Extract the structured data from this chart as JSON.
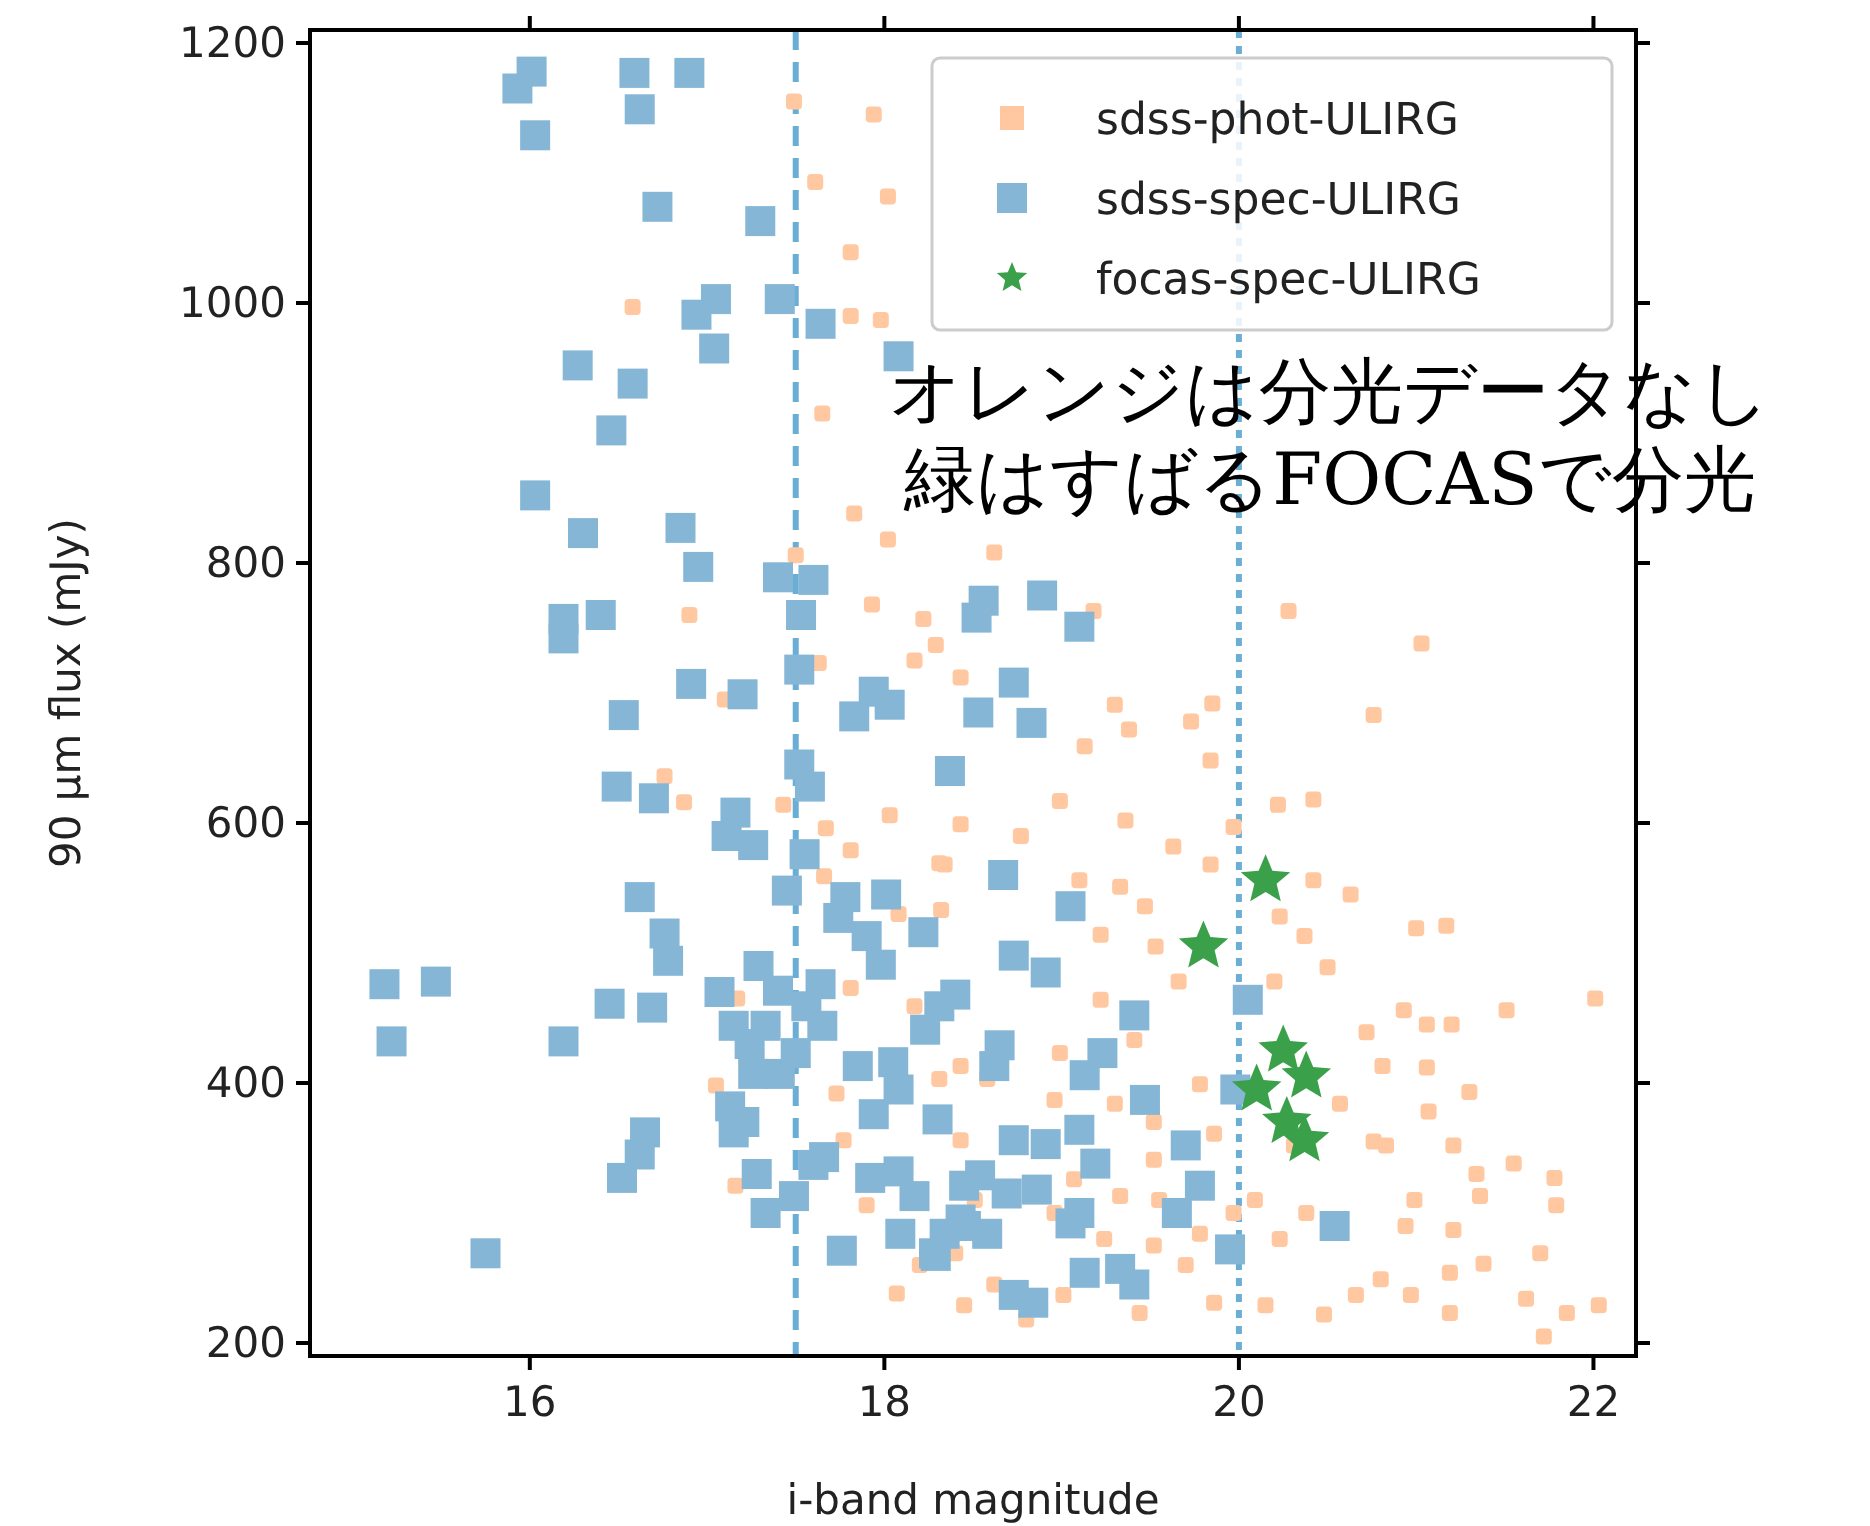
{
  "chart_data": {
    "type": "scatter",
    "xlabel": "i-band magnitude",
    "ylabel": "90 μm flux (mJy)",
    "xlim": [
      14.76,
      22.24
    ],
    "ylim": [
      190,
      1210
    ],
    "xticks": [
      16,
      18,
      20,
      22
    ],
    "yticks": [
      200,
      400,
      600,
      800,
      1000,
      1200
    ],
    "grid": false,
    "legend": "top right",
    "annotations": [
      "オレンジは分光データなし",
      "緑はすばるFOCASで分光"
    ],
    "ref_lines": [
      {
        "axis": "x",
        "value": 17.5,
        "color": "#6aaed6",
        "line_style": "dashed"
      },
      {
        "axis": "x",
        "value": 20.0,
        "color": "#6aaed6",
        "line_style": "dotted"
      }
    ],
    "series": [
      {
        "name": "sdss-phot-ULIRG",
        "color": "#ffc8a0",
        "marker": "square",
        "x": [
          17.49,
          17.94,
          17.61,
          18.02,
          17.81,
          17.81,
          17.98,
          16.58,
          17.65,
          17.83,
          18.02,
          16.9,
          17.93,
          18.22,
          18.29,
          18.17,
          18.43,
          17.63,
          17.5,
          17.1,
          16.76,
          16.87,
          17.43,
          17.67,
          18.03,
          17.81,
          18.31,
          17.66,
          18.08,
          18.32,
          17.81,
          17.17,
          18.17,
          17.05,
          17.73,
          17.77,
          17.16,
          17.9,
          18.07,
          18.45,
          18.31,
          18.43,
          18.51,
          18.62,
          19.18,
          20.28,
          21.03,
          20.76,
          19.3,
          19.85,
          19.73,
          19.38,
          19.13,
          19.84,
          18.43,
          18.99,
          19.36,
          20.22,
          20.42,
          19.97,
          18.77,
          19.63,
          18.34,
          19.1,
          19.33,
          19.84,
          20.42,
          20.63,
          20.23,
          19.47,
          19.22,
          19.53,
          20.37,
          21.0,
          21.17,
          20.5,
          19.66,
          19.22,
          20.2,
          20.93,
          21.51,
          22.01,
          21.06,
          20.72,
          21.2,
          20.81,
          21.06,
          21.3,
          20.57,
          21.07,
          19.78,
          19.41,
          18.99,
          18.43,
          19.86,
          19.52,
          19.3,
          18.96,
          18.58,
          19.52,
          20.31,
          20.76,
          20.83,
          21.21,
          21.55,
          21.78,
          21.34,
          20.99,
          21.36,
          21.79,
          20.94,
          21.21,
          21.7,
          21.38,
          21.19,
          20.8,
          20.97,
          20.66,
          20.48,
          21.19,
          21.62,
          21.85,
          22.03,
          21.72,
          20.15,
          19.86,
          19.44,
          19.01,
          18.8,
          18.62,
          19.97,
          19.78,
          19.52,
          19.24,
          18.96,
          19.33,
          19.07,
          19.55,
          20.09,
          20.23,
          20.38,
          19.7,
          18.4,
          18.2
        ],
        "values": [
          1155,
          1145,
          1093,
          1082,
          1039,
          990,
          987,
          997,
          915,
          838,
          818,
          760,
          768,
          757,
          737,
          725,
          712,
          723,
          806,
          695,
          636,
          616,
          614,
          596,
          606,
          579,
          569,
          559,
          530,
          533,
          473,
          465,
          459,
          398,
          392,
          356,
          321,
          306,
          238,
          229,
          403,
          356,
          310,
          808,
          763,
          763,
          738,
          683,
          691,
          692,
          678,
          672,
          659,
          648,
          599,
          617,
          602,
          614,
          618,
          597,
          590,
          582,
          568,
          556,
          551,
          568,
          556,
          545,
          528,
          536,
          514,
          505,
          513,
          519,
          521,
          489,
          478,
          464,
          478,
          456,
          456,
          465,
          445,
          439,
          445,
          413,
          412,
          393,
          384,
          378,
          399,
          433,
          423,
          413,
          361,
          370,
          384,
          387,
          403,
          341,
          352,
          355,
          352,
          352,
          338,
          327,
          330,
          310,
          313,
          306,
          290,
          287,
          269,
          261,
          254,
          249,
          237,
          237,
          222,
          223,
          234,
          223,
          229,
          205,
          229,
          231,
          223,
          237,
          218,
          245,
          300,
          284,
          275,
          280,
          300,
          313,
          326,
          310,
          310,
          280,
          300,
          260,
          269,
          260
        ]
      },
      {
        "name": "sdss-spec-ULIRG",
        "color": "#85b6d6",
        "marker": "square",
        "x": [
          16.01,
          15.93,
          16.59,
          16.62,
          16.9,
          16.03,
          16.72,
          17.3,
          17.05,
          16.94,
          17.41,
          17.64,
          17.04,
          16.27,
          16.58,
          16.46,
          16.03,
          16.3,
          16.85,
          16.95,
          17.4,
          17.6,
          16.19,
          16.19,
          16.4,
          17.53,
          17.52,
          16.91,
          17.2,
          17.94,
          18.03,
          18.08,
          16.53,
          17.83,
          18.37,
          17.52,
          17.58,
          16.49,
          16.7,
          17.16,
          17.11,
          17.26,
          17.55,
          17.45,
          16.62,
          17.78,
          18.01,
          17.74,
          16.76,
          16.78,
          17.9,
          18.22,
          17.98,
          17.29,
          17.64,
          15.18,
          15.47,
          15.22,
          16.19,
          16.45,
          16.69,
          17.07,
          17.4,
          17.56,
          17.15,
          17.33,
          17.65,
          17.24,
          17.5,
          17.26,
          17.41,
          17.85,
          18.05,
          18.31,
          18.4,
          18.23,
          18.08,
          17.13,
          17.21,
          17.15,
          17.94,
          18.3,
          16.65,
          16.62,
          16.52,
          17.66,
          17.6,
          17.28,
          17.92,
          18.08,
          17.49,
          17.33,
          18.17,
          18.45,
          18.09,
          18.29,
          18.46,
          17.76,
          15.75,
          18.56,
          18.89,
          19.1,
          18.52,
          18.73,
          18.53,
          18.83,
          18.67,
          19.05,
          18.73,
          18.91,
          19.41,
          20.05,
          18.65,
          19.23,
          18.62,
          19.13,
          19.47,
          19.98,
          18.73,
          18.91,
          19.1,
          19.7,
          19.19,
          19.78,
          19.65,
          18.54,
          18.69,
          18.86,
          19.1,
          19.05,
          18.43,
          18.58,
          18.28,
          18.73,
          18.84,
          19.13,
          19.33,
          19.41,
          19.95,
          20.54,
          18.34
        ],
        "values": [
          1178,
          1165,
          1177,
          1149,
          1177,
          1129,
          1074,
          1063,
          1003,
          991,
          1003,
          984,
          965,
          952,
          938,
          902,
          852,
          823,
          827,
          797,
          789,
          787,
          757,
          742,
          760,
          760,
          718,
          707,
          699,
          701,
          691,
          959,
          683,
          682,
          640,
          645,
          628,
          628,
          619,
          608,
          590,
          583,
          576,
          548,
          543,
          543,
          545,
          527,
          515,
          494,
          513,
          516,
          491,
          490,
          476,
          476,
          478,
          432,
          432,
          461,
          458,
          470,
          471,
          459,
          444,
          444,
          444,
          430,
          423,
          407,
          407,
          413,
          416,
          459,
          468,
          441,
          395,
          382,
          370,
          362,
          376,
          372,
          362,
          345,
          327,
          343,
          337,
          330,
          327,
          332,
          313,
          300,
          313,
          321,
          284,
          267,
          290,
          271,
          269,
          771,
          775,
          751,
          758,
          708,
          685,
          677,
          560,
          536,
          498,
          485,
          452,
          464,
          429,
          423,
          413,
          406,
          387,
          395,
          356,
          353,
          364,
          352,
          338,
          321,
          300,
          329,
          315,
          318,
          300,
          292,
          295,
          284,
          269,
          237,
          231,
          254,
          257,
          245,
          272,
          290,
          284
        ]
      },
      {
        "name": "focas-spec-ULIRG",
        "color": "#3aa04a",
        "marker": "star",
        "x": [
          20.15,
          19.8,
          20.25,
          20.38,
          20.1,
          20.27,
          20.37
        ],
        "values": [
          556,
          505,
          425,
          405,
          395,
          370,
          356
        ]
      }
    ]
  }
}
